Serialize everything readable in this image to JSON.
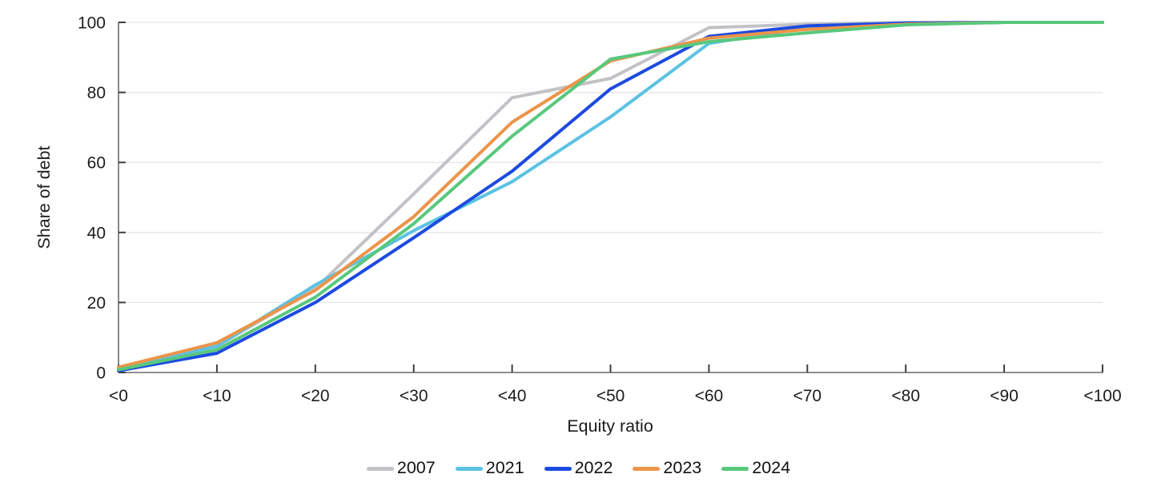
{
  "chart_data": {
    "type": "line",
    "title": "",
    "xlabel": "Equity ratio",
    "ylabel": "Share of debt",
    "categories": [
      "<0",
      "<10",
      "<20",
      "<30",
      "<40",
      "<50",
      "<60",
      "<70",
      "<80",
      "<90",
      "<100"
    ],
    "y_ticks": [
      0,
      20,
      40,
      60,
      80,
      100
    ],
    "ylim": [
      0,
      100
    ],
    "grid": "horizontal-only",
    "legend_position": "bottom-center",
    "series": [
      {
        "name": "2007",
        "color": "#c2c2c6",
        "values": [
          1.5,
          7.5,
          24,
          51,
          78.5,
          84,
          98.5,
          99.5,
          100,
          100,
          100
        ]
      },
      {
        "name": "2021",
        "color": "#5bc2e3",
        "values": [
          1.2,
          7.5,
          25,
          40.5,
          54.5,
          73,
          94,
          98.5,
          99.5,
          100,
          100
        ]
      },
      {
        "name": "2022",
        "color": "#1c4ae0",
        "values": [
          0.5,
          5.5,
          20,
          38.5,
          57.5,
          81,
          96,
          99,
          99.8,
          100,
          100
        ]
      },
      {
        "name": "2023",
        "color": "#ec9449",
        "values": [
          1.5,
          8.5,
          23.5,
          44.5,
          71.5,
          89,
          95.5,
          98,
          99.5,
          100,
          100
        ]
      },
      {
        "name": "2024",
        "color": "#58c87c",
        "values": [
          0.8,
          6.5,
          21.5,
          42.5,
          67.5,
          89.5,
          94.5,
          97,
          99.3,
          100,
          100
        ]
      }
    ]
  },
  "colors": {
    "background": "#ffffff",
    "grid": "#e5e5e7",
    "axis": "#6a6a6c",
    "tick": "#3e3e40",
    "text": "#1c1c1c"
  }
}
